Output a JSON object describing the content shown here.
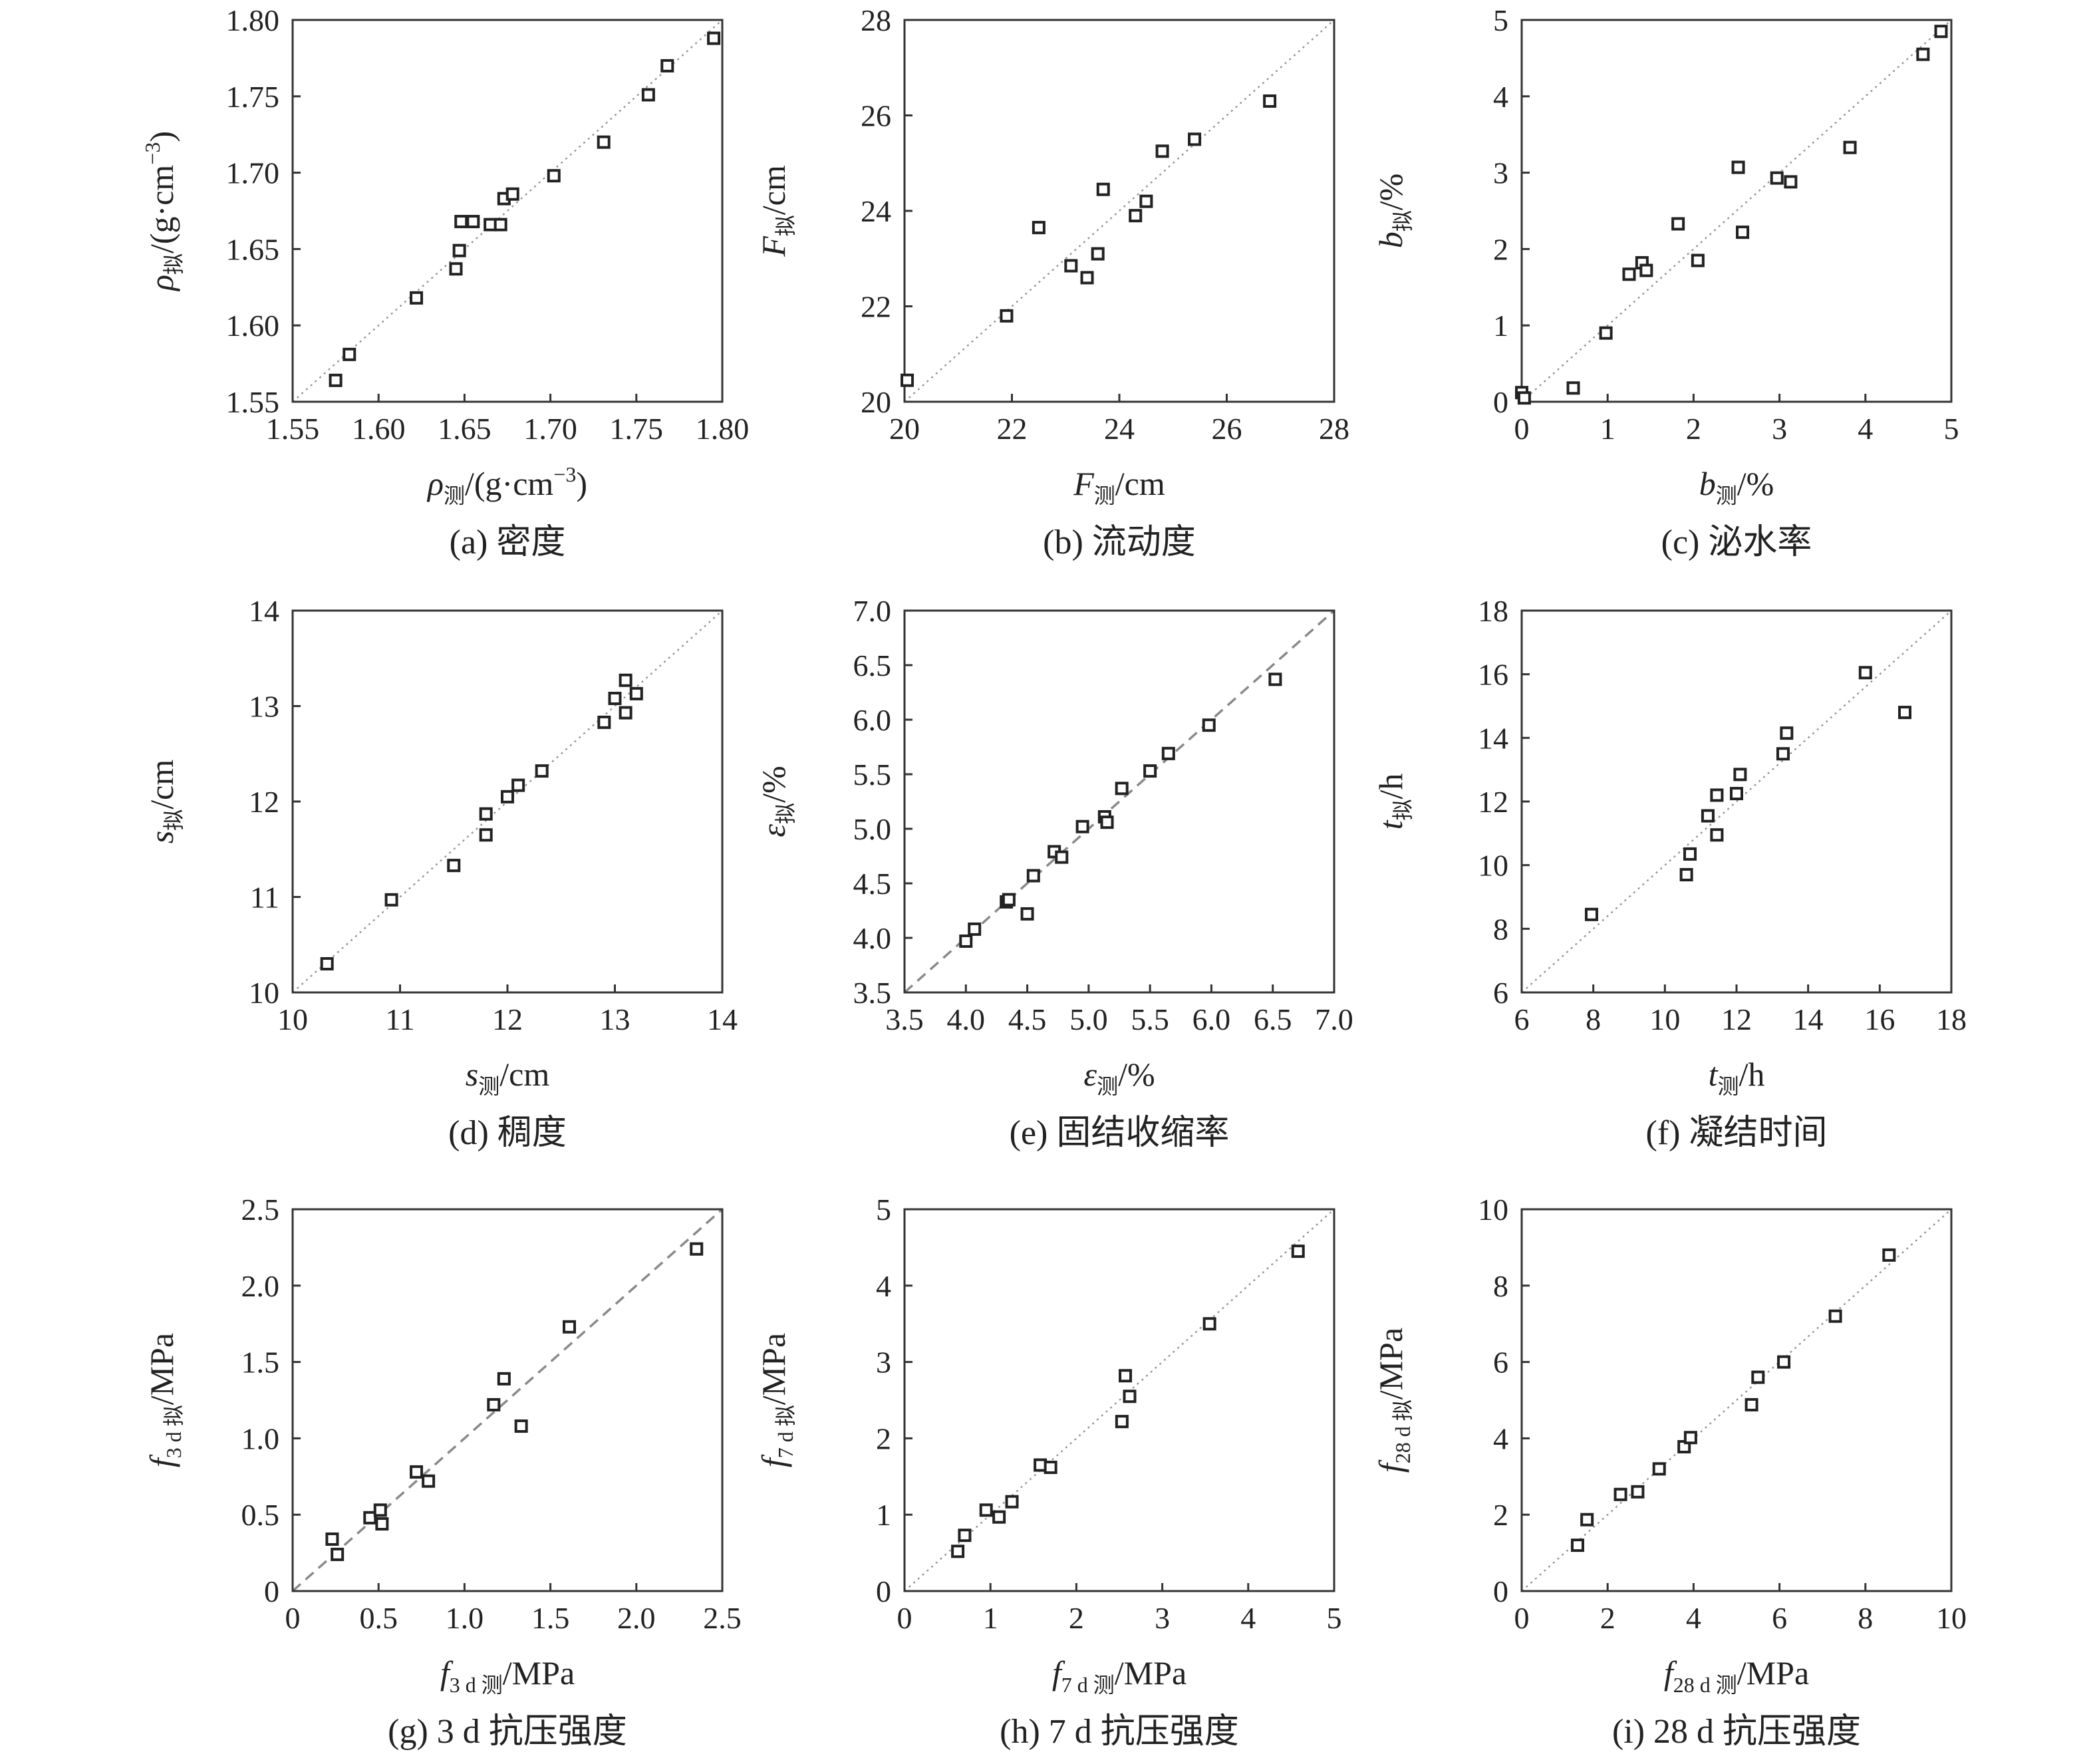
{
  "chart_data": [
    {
      "type": "scatter",
      "caption": "(a) 密度",
      "xlabel": {
        "sym": "ρ",
        "sub": "测",
        "tail": "/(g·cm",
        "sup": "−3",
        "end": ")"
      },
      "ylabel": {
        "sym": "ρ",
        "sub": "拟",
        "tail": "/(g·cm",
        "sup": "−3",
        "end": ")"
      },
      "xlim": [
        1.55,
        1.8
      ],
      "ylim": [
        1.55,
        1.8
      ],
      "xticks": [
        "1.55",
        "1.60",
        "1.65",
        "1.70",
        "1.75",
        "1.80"
      ],
      "yticks": [
        "1.55",
        "1.60",
        "1.65",
        "1.70",
        "1.75",
        "1.80"
      ],
      "ref_line": "dotted",
      "points": [
        [
          1.575,
          1.564
        ],
        [
          1.583,
          1.581
        ],
        [
          1.622,
          1.618
        ],
        [
          1.645,
          1.637
        ],
        [
          1.647,
          1.649
        ],
        [
          1.648,
          1.668
        ],
        [
          1.655,
          1.668
        ],
        [
          1.665,
          1.666
        ],
        [
          1.671,
          1.666
        ],
        [
          1.673,
          1.683
        ],
        [
          1.678,
          1.686
        ],
        [
          1.702,
          1.698
        ],
        [
          1.731,
          1.72
        ],
        [
          1.757,
          1.751
        ],
        [
          1.768,
          1.77
        ],
        [
          1.795,
          1.788
        ]
      ]
    },
    {
      "type": "scatter",
      "caption": "(b) 流动度",
      "xlabel": {
        "sym": "F",
        "sub": "测",
        "tail": "/cm"
      },
      "ylabel": {
        "sym": "F",
        "sub": "拟",
        "tail": "/cm"
      },
      "xlim": [
        20,
        28
      ],
      "ylim": [
        20,
        28
      ],
      "xticks": [
        "20",
        "22",
        "24",
        "26",
        "28"
      ],
      "yticks": [
        "20",
        "22",
        "24",
        "26",
        "28"
      ],
      "ref_line": "dotted",
      "points": [
        [
          20.05,
          20.45
        ],
        [
          21.9,
          21.8
        ],
        [
          22.5,
          23.65
        ],
        [
          23.1,
          22.85
        ],
        [
          23.4,
          22.6
        ],
        [
          23.6,
          23.1
        ],
        [
          23.7,
          24.45
        ],
        [
          24.3,
          23.9
        ],
        [
          24.5,
          24.2
        ],
        [
          24.8,
          25.25
        ],
        [
          25.4,
          25.5
        ],
        [
          26.8,
          26.3
        ]
      ]
    },
    {
      "type": "scatter",
      "caption": "(c) 泌水率",
      "xlabel": {
        "sym": "b",
        "sub": "测",
        "tail": "/%"
      },
      "ylabel": {
        "sym": "b",
        "sub": "拟",
        "tail": "/%"
      },
      "xlim": [
        0,
        5
      ],
      "ylim": [
        0,
        5
      ],
      "xticks": [
        "0",
        "1",
        "2",
        "3",
        "4",
        "5"
      ],
      "yticks": [
        "0",
        "1",
        "2",
        "3",
        "4",
        "5"
      ],
      "ref_line": "dotted",
      "points": [
        [
          0.0,
          0.12
        ],
        [
          0.03,
          0.05
        ],
        [
          0.6,
          0.18
        ],
        [
          0.98,
          0.9
        ],
        [
          1.25,
          1.67
        ],
        [
          1.4,
          1.82
        ],
        [
          1.45,
          1.72
        ],
        [
          1.82,
          2.33
        ],
        [
          2.05,
          1.85
        ],
        [
          2.52,
          3.07
        ],
        [
          2.57,
          2.22
        ],
        [
          2.97,
          2.93
        ],
        [
          3.13,
          2.88
        ],
        [
          3.82,
          3.33
        ],
        [
          4.67,
          4.55
        ],
        [
          4.88,
          4.85
        ]
      ]
    },
    {
      "type": "scatter",
      "caption": "(d) 稠度",
      "xlabel": {
        "sym": "s",
        "sub": "测",
        "tail": "/cm"
      },
      "ylabel": {
        "sym": "s",
        "sub": "拟",
        "tail": "/cm"
      },
      "xlim": [
        10,
        14
      ],
      "ylim": [
        10,
        14
      ],
      "xticks": [
        "10",
        "11",
        "12",
        "13",
        "14"
      ],
      "yticks": [
        "10",
        "11",
        "12",
        "13",
        "14"
      ],
      "ref_line": "dotted",
      "points": [
        [
          10.32,
          10.3
        ],
        [
          10.92,
          10.97
        ],
        [
          11.5,
          11.33
        ],
        [
          11.8,
          11.65
        ],
        [
          11.8,
          11.87
        ],
        [
          12.0,
          12.05
        ],
        [
          12.1,
          12.17
        ],
        [
          12.32,
          12.32
        ],
        [
          12.9,
          12.83
        ],
        [
          13.0,
          13.08
        ],
        [
          13.1,
          12.93
        ],
        [
          13.1,
          13.27
        ],
        [
          13.2,
          13.13
        ]
      ]
    },
    {
      "type": "scatter",
      "caption": "(e) 固结收缩率",
      "xlabel": {
        "sym": "ε",
        "sub": "测",
        "tail": "/%"
      },
      "ylabel": {
        "sym": "ε",
        "sub": "拟",
        "tail": "/%"
      },
      "xlim": [
        3.5,
        7.0
      ],
      "ylim": [
        3.5,
        7.0
      ],
      "xticks": [
        "3.5",
        "4.0",
        "4.5",
        "5.0",
        "5.5",
        "6.0",
        "6.5",
        "7.0"
      ],
      "yticks": [
        "3.5",
        "4.0",
        "4.5",
        "5.0",
        "5.5",
        "6.0",
        "6.5",
        "7.0"
      ],
      "ref_line": "dashed",
      "points": [
        [
          4.0,
          3.97
        ],
        [
          4.07,
          4.08
        ],
        [
          4.33,
          4.33
        ],
        [
          4.35,
          4.35
        ],
        [
          4.5,
          4.22
        ],
        [
          4.55,
          4.57
        ],
        [
          4.72,
          4.79
        ],
        [
          4.78,
          4.74
        ],
        [
          4.95,
          5.02
        ],
        [
          5.13,
          5.11
        ],
        [
          5.15,
          5.06
        ],
        [
          5.27,
          5.37
        ],
        [
          5.5,
          5.53
        ],
        [
          5.65,
          5.69
        ],
        [
          5.98,
          5.95
        ],
        [
          6.52,
          6.37
        ]
      ]
    },
    {
      "type": "scatter",
      "caption": "(f) 凝结时间",
      "xlabel": {
        "sym": "t",
        "sub": "测",
        "tail": "/h"
      },
      "ylabel": {
        "sym": "t",
        "sub": "拟",
        "tail": "/h"
      },
      "xlim": [
        6,
        18
      ],
      "ylim": [
        6,
        18
      ],
      "xticks": [
        "6",
        "8",
        "10",
        "12",
        "14",
        "16",
        "18"
      ],
      "yticks": [
        "6",
        "8",
        "10",
        "12",
        "14",
        "16",
        "18"
      ],
      "ref_line": "dotted",
      "points": [
        [
          7.95,
          8.45
        ],
        [
          10.6,
          9.7
        ],
        [
          10.7,
          10.35
        ],
        [
          11.2,
          11.55
        ],
        [
          11.45,
          12.2
        ],
        [
          11.45,
          10.95
        ],
        [
          12.0,
          12.25
        ],
        [
          12.1,
          12.85
        ],
        [
          13.3,
          13.5
        ],
        [
          13.4,
          14.15
        ],
        [
          15.6,
          16.05
        ],
        [
          16.7,
          14.8
        ]
      ]
    },
    {
      "type": "scatter",
      "caption": "(g) 3 d 抗压强度",
      "xlabel": {
        "sym": "f",
        "sub": "3 d 测",
        "tail": "/MPa"
      },
      "ylabel": {
        "sym": "f",
        "sub": "3 d 拟",
        "tail": "/MPa"
      },
      "xlim": [
        0,
        2.5
      ],
      "ylim": [
        0,
        2.5
      ],
      "xticks": [
        "0",
        "0.5",
        "1.0",
        "1.5",
        "2.0",
        "2.5"
      ],
      "yticks": [
        "0",
        "0.5",
        "1.0",
        "1.5",
        "2.0",
        "2.5"
      ],
      "ref_line": "dashed",
      "points": [
        [
          0.23,
          0.34
        ],
        [
          0.26,
          0.24
        ],
        [
          0.45,
          0.48
        ],
        [
          0.51,
          0.53
        ],
        [
          0.52,
          0.44
        ],
        [
          0.72,
          0.78
        ],
        [
          0.79,
          0.72
        ],
        [
          1.17,
          1.22
        ],
        [
          1.23,
          1.39
        ],
        [
          1.33,
          1.08
        ],
        [
          1.61,
          1.73
        ],
        [
          2.35,
          2.24
        ]
      ]
    },
    {
      "type": "scatter",
      "caption": "(h) 7 d 抗压强度",
      "xlabel": {
        "sym": "f",
        "sub": "7 d 测",
        "tail": "/MPa"
      },
      "ylabel": {
        "sym": "f",
        "sub": "7 d 拟",
        "tail": "/MPa"
      },
      "xlim": [
        0,
        5
      ],
      "ylim": [
        0,
        5
      ],
      "xticks": [
        "0",
        "1",
        "2",
        "3",
        "4",
        "5"
      ],
      "yticks": [
        "0",
        "1",
        "2",
        "3",
        "4",
        "5"
      ],
      "ref_line": "dotted",
      "points": [
        [
          0.62,
          0.52
        ],
        [
          0.7,
          0.73
        ],
        [
          0.95,
          1.06
        ],
        [
          1.1,
          0.97
        ],
        [
          1.25,
          1.17
        ],
        [
          1.58,
          1.65
        ],
        [
          1.7,
          1.62
        ],
        [
          2.53,
          2.22
        ],
        [
          2.57,
          2.82
        ],
        [
          2.62,
          2.55
        ],
        [
          3.55,
          3.5
        ],
        [
          4.58,
          4.45
        ]
      ]
    },
    {
      "type": "scatter",
      "caption": "(i) 28 d 抗压强度",
      "xlabel": {
        "sym": "f",
        "sub": "28 d 测",
        "tail": "/MPa"
      },
      "ylabel": {
        "sym": "f",
        "sub": "28 d 拟",
        "tail": "/MPa"
      },
      "xlim": [
        0,
        10
      ],
      "ylim": [
        0,
        10
      ],
      "xticks": [
        "0",
        "2",
        "4",
        "6",
        "8",
        "10"
      ],
      "yticks": [
        "0",
        "2",
        "4",
        "6",
        "8",
        "10"
      ],
      "ref_line": "dotted",
      "points": [
        [
          1.3,
          1.2
        ],
        [
          1.52,
          1.87
        ],
        [
          2.3,
          2.53
        ],
        [
          2.7,
          2.6
        ],
        [
          3.2,
          3.2
        ],
        [
          3.78,
          3.78
        ],
        [
          3.93,
          4.02
        ],
        [
          5.35,
          4.88
        ],
        [
          5.5,
          5.6
        ],
        [
          6.1,
          6.0
        ],
        [
          7.3,
          7.2
        ],
        [
          8.55,
          8.8
        ]
      ]
    }
  ]
}
